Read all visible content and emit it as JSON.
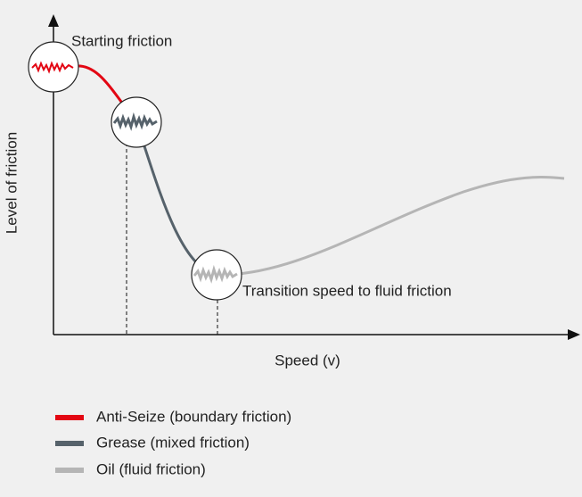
{
  "diagram": {
    "annotations": {
      "start": "Starting friction",
      "transition": "Transition speed to fluid friction"
    },
    "y_axis_label": "Level of friction",
    "x_axis_label": "Speed (v)",
    "legend": [
      {
        "label": "Anti-Seize (boundary friction)"
      },
      {
        "label": "Grease (mixed friction)"
      },
      {
        "label": "Oil (fluid friction)"
      }
    ]
  }
}
